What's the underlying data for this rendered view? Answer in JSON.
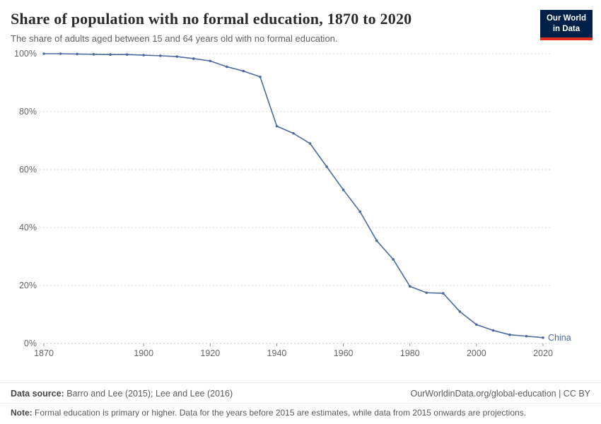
{
  "logo": {
    "line1": "Our World",
    "line2": "in Data",
    "bg": "#002147",
    "accent": "#dc2f1e"
  },
  "footer": {
    "datasource_label": "Data source:",
    "datasource": "Barro and Lee (2015); Lee and Lee (2016)",
    "link": "OurWorldinData.org/global-education | CC BY",
    "note_label": "Note:",
    "note": "Formal education is primary or higher. Data for the years before 2015 are estimates, while data from 2015 onwards are projections."
  },
  "chart_data": {
    "type": "line",
    "title": "Share of population with no formal education, 1870 to 2020",
    "subtitle": "The share of adults aged between 15 and 64 years old with no formal education.",
    "xlabel": "",
    "ylabel": "",
    "xlim": [
      1870,
      2020
    ],
    "ylim": [
      0,
      100
    ],
    "grid": true,
    "legend_position": "end-of-line-label",
    "yticks": [
      0,
      20,
      40,
      60,
      80,
      100
    ],
    "xticks": [
      1870,
      1900,
      1920,
      1940,
      1960,
      1980,
      2000,
      2020
    ],
    "series": [
      {
        "name": "China",
        "color": "#4c6a9d",
        "x": [
          1870,
          1875,
          1880,
          1885,
          1890,
          1895,
          1900,
          1905,
          1910,
          1915,
          1920,
          1925,
          1930,
          1935,
          1940,
          1945,
          1950,
          1955,
          1960,
          1965,
          1970,
          1975,
          1980,
          1985,
          1990,
          1995,
          2000,
          2005,
          2010,
          2015,
          2020
        ],
        "y": [
          100,
          100,
          99.9,
          99.8,
          99.7,
          99.7,
          99.5,
          99.3,
          99,
          98.3,
          97.5,
          95.5,
          94,
          92,
          75,
          72.5,
          69,
          61,
          53,
          45.5,
          35.5,
          29,
          19.7,
          17.5,
          17.3,
          11,
          6.5,
          4.5,
          3,
          2.5,
          2
        ]
      }
    ]
  }
}
